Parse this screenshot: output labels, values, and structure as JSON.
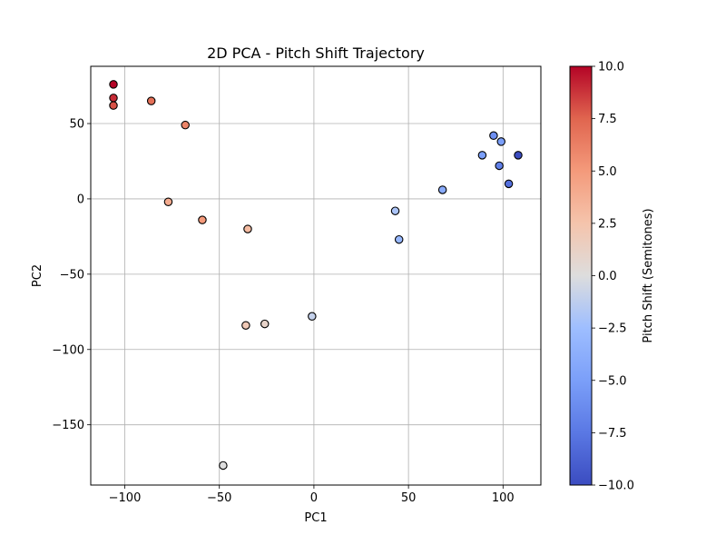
{
  "chart_data": {
    "type": "scatter",
    "title": "2D PCA - Pitch Shift Trajectory",
    "xlabel": "PC1",
    "ylabel": "PC2",
    "xlim": [
      -118,
      120
    ],
    "ylim": [
      -190,
      88
    ],
    "xticks": [
      -100,
      -50,
      0,
      50,
      100
    ],
    "xtick_labels": [
      "−100",
      "−50",
      "0",
      "50",
      "100"
    ],
    "yticks": [
      50,
      0,
      -50,
      -100,
      -150
    ],
    "ytick_labels": [
      "50",
      "0",
      "−50",
      "−100",
      "−150"
    ],
    "grid": true,
    "colorbar": {
      "label": "Pitch Shift (Semitones)",
      "colormap": "coolwarm",
      "range": [
        -10,
        10
      ],
      "ticks": [
        10,
        7.5,
        5,
        2.5,
        0,
        -2.5,
        -5,
        -7.5,
        -10
      ],
      "tick_labels": [
        "10.0",
        "7.5",
        "5.0",
        "2.5",
        "0.0",
        "−2.5",
        "−5.0",
        "−7.5",
        "−10.0"
      ]
    },
    "points": [
      {
        "x": -106,
        "y": 76,
        "c": 10
      },
      {
        "x": -106,
        "y": 67,
        "c": 9
      },
      {
        "x": -106,
        "y": 62,
        "c": 8
      },
      {
        "x": -86,
        "y": 65,
        "c": 7
      },
      {
        "x": -68,
        "y": 49,
        "c": 6
      },
      {
        "x": -77,
        "y": -2,
        "c": 4
      },
      {
        "x": -59,
        "y": -14,
        "c": 5
      },
      {
        "x": -35,
        "y": -20,
        "c": 3
      },
      {
        "x": -36,
        "y": -84,
        "c": 2
      },
      {
        "x": -26,
        "y": -83,
        "c": 1
      },
      {
        "x": -48,
        "y": -177,
        "c": 0
      },
      {
        "x": -1,
        "y": -78,
        "c": -1
      },
      {
        "x": 43,
        "y": -8,
        "c": -2
      },
      {
        "x": 45,
        "y": -27,
        "c": -3
      },
      {
        "x": 68,
        "y": 6,
        "c": -4
      },
      {
        "x": 89,
        "y": 29,
        "c": -5
      },
      {
        "x": 95,
        "y": 42,
        "c": -6
      },
      {
        "x": 99,
        "y": 38,
        "c": -5
      },
      {
        "x": 98,
        "y": 22,
        "c": -7
      },
      {
        "x": 103,
        "y": 10,
        "c": -8
      },
      {
        "x": 108,
        "y": 29,
        "c": -10
      }
    ]
  }
}
